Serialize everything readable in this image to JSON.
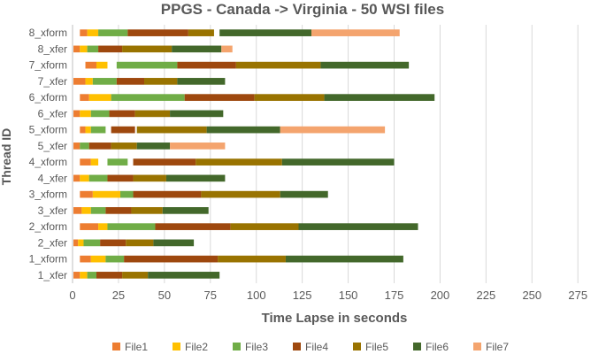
{
  "chart_data": {
    "type": "bar",
    "orientation": "horizontal",
    "stacked": true,
    "title": "PPGS - Canada -> Virginia - 50 WSI files",
    "xlabel": "Time Lapse in seconds",
    "ylabel": "Thread ID",
    "xlim": [
      0,
      285
    ],
    "xticks": [
      0,
      25,
      50,
      75,
      100,
      125,
      150,
      175,
      200,
      225,
      250,
      275
    ],
    "grid": "vertical",
    "legend": "bottom",
    "series_names": [
      "File1",
      "File2",
      "File3",
      "File4",
      "File5",
      "File6",
      "File7"
    ],
    "colors": {
      "File1": "#ED7D31",
      "File2": "#FFC000",
      "File3": "#70AD47",
      "File4": "#9E480E",
      "File5": "#997300",
      "File6": "#43682B",
      "File7": "#F4A46E"
    },
    "categories": [
      "1_xfer",
      "1_xform",
      "2_xfer",
      "2_xform",
      "3_xfer",
      "3_xform",
      "4_xfer",
      "4_xform",
      "5_xfer",
      "5_xform",
      "6_xfer",
      "6_xform",
      "7_xfer",
      "7_xform",
      "8_xfer",
      "8_xform"
    ],
    "rows": [
      {
        "category": "1_xfer",
        "segments": [
          {
            "series": "File1",
            "start": 0.5,
            "end": 4
          },
          {
            "series": "File2",
            "start": 4,
            "end": 8
          },
          {
            "series": "File3",
            "start": 8,
            "end": 13
          },
          {
            "series": "File4",
            "start": 13,
            "end": 27
          },
          {
            "series": "File5",
            "start": 27,
            "end": 41
          },
          {
            "series": "File6",
            "start": 41,
            "end": 80
          }
        ]
      },
      {
        "category": "1_xform",
        "segments": [
          {
            "series": "File1",
            "start": 4,
            "end": 10
          },
          {
            "series": "File2",
            "start": 10,
            "end": 18
          },
          {
            "series": "File3",
            "start": 18,
            "end": 28
          },
          {
            "series": "File4",
            "start": 28,
            "end": 79
          },
          {
            "series": "File5",
            "start": 79,
            "end": 116
          },
          {
            "series": "File6",
            "start": 116,
            "end": 180
          }
        ]
      },
      {
        "category": "2_xfer",
        "segments": [
          {
            "series": "File1",
            "start": 0.5,
            "end": 3
          },
          {
            "series": "File2",
            "start": 3,
            "end": 6
          },
          {
            "series": "File3",
            "start": 6,
            "end": 15
          },
          {
            "series": "File4",
            "start": 15,
            "end": 29
          },
          {
            "series": "File5",
            "start": 29,
            "end": 44
          },
          {
            "series": "File6",
            "start": 44,
            "end": 66
          }
        ]
      },
      {
        "category": "2_xform",
        "segments": [
          {
            "series": "File1",
            "start": 4,
            "end": 14
          },
          {
            "series": "File2",
            "start": 14,
            "end": 19
          },
          {
            "series": "File3",
            "start": 19,
            "end": 45
          },
          {
            "series": "File4",
            "start": 45,
            "end": 86
          },
          {
            "series": "File5",
            "start": 86,
            "end": 123
          },
          {
            "series": "File6",
            "start": 123,
            "end": 188
          }
        ]
      },
      {
        "category": "3_xfer",
        "segments": [
          {
            "series": "File1",
            "start": 0.5,
            "end": 5
          },
          {
            "series": "File2",
            "start": 5,
            "end": 10
          },
          {
            "series": "File3",
            "start": 10,
            "end": 18
          },
          {
            "series": "File4",
            "start": 18,
            "end": 32
          },
          {
            "series": "File5",
            "start": 32,
            "end": 49
          },
          {
            "series": "File6",
            "start": 49,
            "end": 74
          }
        ]
      },
      {
        "category": "3_xform",
        "segments": [
          {
            "series": "File1",
            "start": 4,
            "end": 11
          },
          {
            "series": "File2",
            "start": 11,
            "end": 26
          },
          {
            "series": "File3",
            "start": 26,
            "end": 33
          },
          {
            "series": "File4",
            "start": 33,
            "end": 70
          },
          {
            "series": "File5",
            "start": 70,
            "end": 113
          },
          {
            "series": "File6",
            "start": 113,
            "end": 139
          }
        ]
      },
      {
        "category": "4_xfer",
        "segments": [
          {
            "series": "File1",
            "start": 0.5,
            "end": 4
          },
          {
            "series": "File2",
            "start": 4,
            "end": 9
          },
          {
            "series": "File3",
            "start": 9,
            "end": 19
          },
          {
            "series": "File4",
            "start": 19,
            "end": 33
          },
          {
            "series": "File5",
            "start": 33,
            "end": 51
          },
          {
            "series": "File6",
            "start": 51,
            "end": 83
          }
        ]
      },
      {
        "category": "4_xform",
        "segments": [
          {
            "series": "File1",
            "start": 4,
            "end": 10
          },
          {
            "series": "File2",
            "start": 10,
            "end": 14
          },
          {
            "series": "File3",
            "start": 19,
            "end": 30
          },
          {
            "series": "File4",
            "start": 33,
            "end": 67
          },
          {
            "series": "File5",
            "start": 67,
            "end": 114
          },
          {
            "series": "File6",
            "start": 114,
            "end": 175
          }
        ]
      },
      {
        "category": "5_xfer",
        "segments": [
          {
            "series": "File1",
            "start": 0.5,
            "end": 4
          },
          {
            "series": "File3",
            "start": 4,
            "end": 9
          },
          {
            "series": "File4",
            "start": 9,
            "end": 21
          },
          {
            "series": "File5",
            "start": 21,
            "end": 35
          },
          {
            "series": "File6",
            "start": 35,
            "end": 53
          },
          {
            "series": "File7",
            "start": 53,
            "end": 83
          }
        ]
      },
      {
        "category": "5_xform",
        "segments": [
          {
            "series": "File1",
            "start": 4,
            "end": 7
          },
          {
            "series": "File2",
            "start": 7,
            "end": 10
          },
          {
            "series": "File3",
            "start": 10,
            "end": 18
          },
          {
            "series": "File4",
            "start": 21,
            "end": 34
          },
          {
            "series": "File5",
            "start": 35,
            "end": 73
          },
          {
            "series": "File6",
            "start": 73,
            "end": 113
          },
          {
            "series": "File7",
            "start": 113,
            "end": 170
          }
        ]
      },
      {
        "category": "6_xfer",
        "segments": [
          {
            "series": "File1",
            "start": 0.5,
            "end": 4
          },
          {
            "series": "File2",
            "start": 4,
            "end": 10
          },
          {
            "series": "File3",
            "start": 10,
            "end": 20
          },
          {
            "series": "File4",
            "start": 20,
            "end": 34
          },
          {
            "series": "File5",
            "start": 34,
            "end": 53
          },
          {
            "series": "File6",
            "start": 53,
            "end": 82
          }
        ]
      },
      {
        "category": "6_xform",
        "segments": [
          {
            "series": "File1",
            "start": 4,
            "end": 9
          },
          {
            "series": "File2",
            "start": 9,
            "end": 21
          },
          {
            "series": "File3",
            "start": 21,
            "end": 61
          },
          {
            "series": "File4",
            "start": 61,
            "end": 99
          },
          {
            "series": "File5",
            "start": 99,
            "end": 137
          },
          {
            "series": "File6",
            "start": 137,
            "end": 197
          }
        ]
      },
      {
        "category": "7_xfer",
        "segments": [
          {
            "series": "File1",
            "start": 0.5,
            "end": 7
          },
          {
            "series": "File2",
            "start": 7,
            "end": 11
          },
          {
            "series": "File3",
            "start": 11,
            "end": 24
          },
          {
            "series": "File4",
            "start": 24,
            "end": 39
          },
          {
            "series": "File5",
            "start": 39,
            "end": 57
          },
          {
            "series": "File6",
            "start": 57,
            "end": 83
          }
        ]
      },
      {
        "category": "7_xform",
        "segments": [
          {
            "series": "File1",
            "start": 7,
            "end": 13
          },
          {
            "series": "File2",
            "start": 13,
            "end": 19
          },
          {
            "series": "File3",
            "start": 24,
            "end": 57
          },
          {
            "series": "File4",
            "start": 57,
            "end": 89
          },
          {
            "series": "File5",
            "start": 89,
            "end": 135
          },
          {
            "series": "File6",
            "start": 135,
            "end": 183
          }
        ]
      },
      {
        "category": "8_xfer",
        "segments": [
          {
            "series": "File1",
            "start": 0.5,
            "end": 4
          },
          {
            "series": "File2",
            "start": 4,
            "end": 8
          },
          {
            "series": "File3",
            "start": 8,
            "end": 14
          },
          {
            "series": "File4",
            "start": 14,
            "end": 27
          },
          {
            "series": "File5",
            "start": 27,
            "end": 54
          },
          {
            "series": "File6",
            "start": 54,
            "end": 81
          },
          {
            "series": "File7",
            "start": 81,
            "end": 87
          }
        ]
      },
      {
        "category": "8_xform",
        "segments": [
          {
            "series": "File1",
            "start": 4,
            "end": 8
          },
          {
            "series": "File2",
            "start": 8,
            "end": 14
          },
          {
            "series": "File3",
            "start": 14,
            "end": 30
          },
          {
            "series": "File4",
            "start": 30,
            "end": 63
          },
          {
            "series": "File5",
            "start": 63,
            "end": 77
          },
          {
            "series": "File6",
            "start": 80,
            "end": 130
          },
          {
            "series": "File7",
            "start": 130,
            "end": 178
          }
        ]
      }
    ]
  }
}
